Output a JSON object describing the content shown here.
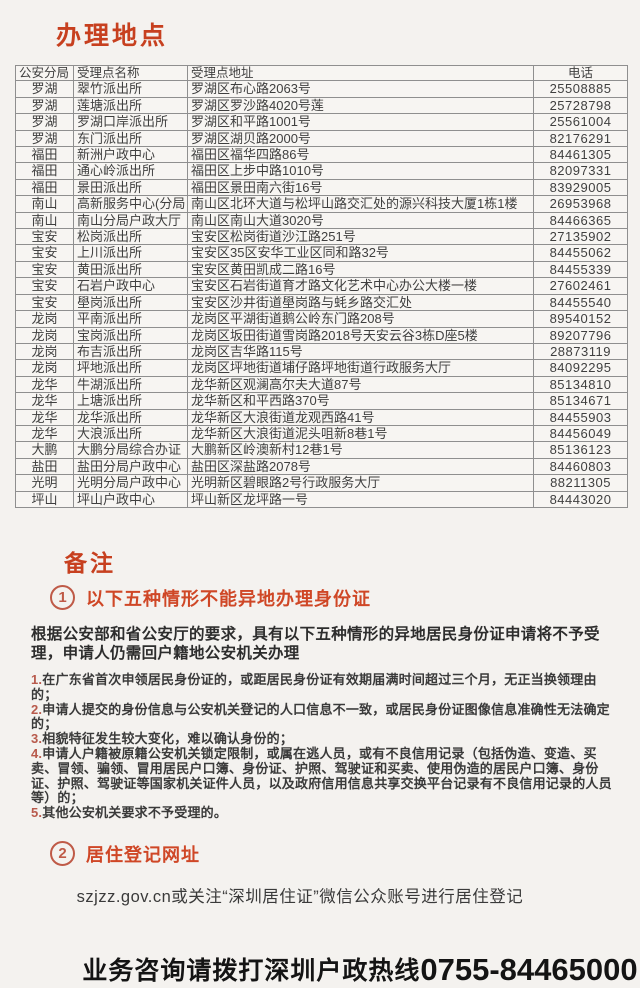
{
  "page": {
    "title": "办理地点",
    "accent_red": "#c7401f",
    "heading_orange": "#cf4726"
  },
  "table": {
    "headers": [
      "公安分局",
      "受理点名称",
      "受理点地址",
      "电话"
    ],
    "rows": [
      [
        "罗湖",
        "翠竹派出所",
        "罗湖区布心路2063号",
        "25508885"
      ],
      [
        "罗湖",
        "莲塘派出所",
        "罗湖区罗沙路4020号莲",
        "25728798"
      ],
      [
        "罗湖",
        "罗湖口岸派出所",
        "罗湖区和平路1001号",
        "25561004"
      ],
      [
        "罗湖",
        "东门派出所",
        "罗湖区湖贝路2000号",
        "82176291"
      ],
      [
        "福田",
        "新洲户政中心",
        "福田区福华四路86号",
        "84461305"
      ],
      [
        "福田",
        "通心岭派出所",
        "福田区上步中路1010号",
        "82097331"
      ],
      [
        "福田",
        "景田派出所",
        "福田区景田南六街16号",
        "83929005"
      ],
      [
        "南山",
        "高新服务中心(分局",
        "南山区北环大道与松坪山路交汇处的源兴科技大厦1栋1楼",
        "26953968"
      ],
      [
        "南山",
        "南山分局户政大厅",
        "南山区南山大道3020号",
        "84466365"
      ],
      [
        "宝安",
        "松岗派出所",
        "宝安区松岗街道沙江路251号",
        "27135902"
      ],
      [
        "宝安",
        "上川派出所",
        "宝安区35区安华工业区同和路32号",
        "84455062"
      ],
      [
        "宝安",
        "黄田派出所",
        "宝安区黄田凯成二路16号",
        "84455339"
      ],
      [
        "宝安",
        "石岩户政中心",
        "宝安区石岩街道育才路文化艺术中心办公大楼一楼",
        "27602461"
      ],
      [
        "宝安",
        "壆岗派出所",
        "宝安区沙井街道壆岗路与蚝乡路交汇处",
        "84455540"
      ],
      [
        "龙岗",
        "平南派出所",
        "龙岗区平湖街道鹅公岭东门路208号",
        "89540152"
      ],
      [
        "龙岗",
        "宝岗派出所",
        "龙岗区坂田街道雪岗路2018号天安云谷3栋D座5楼",
        "89207796"
      ],
      [
        "龙岗",
        "布吉派出所",
        "龙岗区吉华路115号",
        "28873119"
      ],
      [
        "龙岗",
        "坪地派出所",
        "龙岗区坪地街道埔仔路坪地街道行政服务大厅",
        "84092295"
      ],
      [
        "龙华",
        "牛湖派出所",
        "龙华新区观澜高尔夫大道87号",
        "85134810"
      ],
      [
        "龙华",
        "上塘派出所",
        "龙华新区和平西路370号",
        "85134671"
      ],
      [
        "龙华",
        "龙华派出所",
        "龙华新区大浪街道龙观西路41号",
        "84455903"
      ],
      [
        "龙华",
        "大浪派出所",
        "龙华新区大浪街道泥头咀新8巷1号",
        "84456049"
      ],
      [
        "大鹏",
        "大鹏分局综合办证",
        "大鹏新区岭澳新村12巷1号",
        "85136123"
      ],
      [
        "盐田",
        "盐田分局户政中心",
        "盐田区深盐路2078号",
        "84460803"
      ],
      [
        "光明",
        "光明分局户政中心",
        "光明新区碧眼路2号行政服务大厅",
        "88211305"
      ],
      [
        "坪山",
        "坪山户政中心",
        "坪山新区龙坪路一号",
        "84443020"
      ]
    ]
  },
  "notes": {
    "heading": "备注",
    "section1": {
      "badge": "1",
      "title": "以下五种情形不能异地办理身份证"
    },
    "intro": "根据公安部和省公安厅的要求，具有以下五种情形的异地居民身份证申请将不予受理，申请人仍需回户籍地公安机关办理",
    "items": [
      {
        "num": "1.",
        "text": "在广东省首次申领居民身份证的，或距居民身份证有效期届满时间超过三个月，无正当换领理由的；"
      },
      {
        "num": "2.",
        "text": "申请人提交的身份信息与公安机关登记的人口信息不一致，或居民身份证图像信息准确性无法确定的；"
      },
      {
        "num": "3.",
        "text": "相貌特征发生较大变化，难以确认身份的；"
      },
      {
        "num": "4.",
        "text": "申请人户籍被原籍公安机关锁定限制，或属在逃人员，或有不良信用记录（包括伪造、变造、买卖、冒领、骗领、冒用居民户口簿、身份证、护照、驾驶证和买卖、使用伪造的居民户口簿、身份证、护照、驾驶证等国家机关证件人员，以及政府信用信息共享交换平台记录有不良信用记录的人员等）的；"
      },
      {
        "num": "5.",
        "text": "其他公安机关要求不予受理的。"
      }
    ],
    "section2": {
      "badge": "2",
      "title": "居住登记网址"
    },
    "registration_line": "szjzz.gov.cn或关注“深圳居住证”微信公众账号进行居住登记"
  },
  "footer": {
    "hotline_prefix": "业务咨询请拨打深圳户政热线",
    "hotline_number": "0755-84465000"
  }
}
